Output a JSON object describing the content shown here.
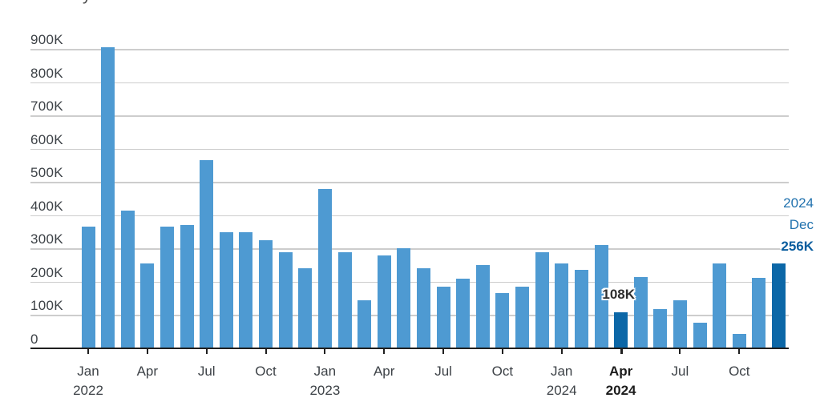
{
  "title_fragment": "y",
  "colors": {
    "bar": "#4e9ad2",
    "bar_highlight": "#0c67a7",
    "gridline": "#cdcdcd",
    "axis": "#1f1f1f",
    "axis_label": "#3d4247",
    "annotation_blue": "#2172ae",
    "annotation_blue_bold": "#0a5d9e",
    "annotation_dark": "#2e2e2e"
  },
  "chart_data": {
    "type": "bar",
    "title": "",
    "xlabel": "",
    "ylabel": "",
    "unit": "thousands",
    "ylim": [
      0,
      900000
    ],
    "grid": "on",
    "y_ticks": [
      "0",
      "100K",
      "200K",
      "300K",
      "400K",
      "500K",
      "600K",
      "700K",
      "800K",
      "900K"
    ],
    "categories": [
      "Jan 2022",
      "Feb 2022",
      "Mar 2022",
      "Apr 2022",
      "May 2022",
      "Jun 2022",
      "Jul 2022",
      "Aug 2022",
      "Sep 2022",
      "Oct 2022",
      "Nov 2022",
      "Dec 2022",
      "Jan 2023",
      "Feb 2023",
      "Mar 2023",
      "Apr 2023",
      "May 2023",
      "Jun 2023",
      "Jul 2023",
      "Aug 2023",
      "Sep 2023",
      "Oct 2023",
      "Nov 2023",
      "Dec 2023",
      "Jan 2024",
      "Feb 2024",
      "Mar 2024",
      "Apr 2024",
      "May 2024",
      "Jun 2024",
      "Jul 2024",
      "Aug 2024",
      "Sep 2024",
      "Oct 2024",
      "Nov 2024",
      "Dec 2024"
    ],
    "values_thousands": [
      365,
      905,
      415,
      255,
      365,
      370,
      565,
      350,
      350,
      325,
      290,
      240,
      480,
      290,
      145,
      280,
      300,
      240,
      185,
      210,
      250,
      165,
      185,
      290,
      255,
      235,
      310,
      108,
      215,
      117,
      145,
      78,
      255,
      44,
      212,
      256
    ],
    "highlighted_indices": [
      27,
      35
    ],
    "x_axis_quarter_labels": [
      {
        "month": "Jan",
        "year": "2022",
        "bold": false
      },
      {
        "month": "Apr",
        "year": "",
        "bold": false
      },
      {
        "month": "Jul",
        "year": "",
        "bold": false
      },
      {
        "month": "Oct",
        "year": "",
        "bold": false
      },
      {
        "month": "Jan",
        "year": "2023",
        "bold": false
      },
      {
        "month": "Apr",
        "year": "",
        "bold": false
      },
      {
        "month": "Jul",
        "year": "",
        "bold": false
      },
      {
        "month": "Oct",
        "year": "",
        "bold": false
      },
      {
        "month": "Jan",
        "year": "2024",
        "bold": false
      },
      {
        "month": "Apr",
        "year": "2024",
        "bold": true
      },
      {
        "month": "Jul",
        "year": "",
        "bold": false
      },
      {
        "month": "Oct",
        "year": "",
        "bold": false
      }
    ],
    "annotations": {
      "apr_label": "108K",
      "dec_lines": [
        "2024",
        "Dec",
        "256K"
      ]
    },
    "legend_position": "none"
  }
}
